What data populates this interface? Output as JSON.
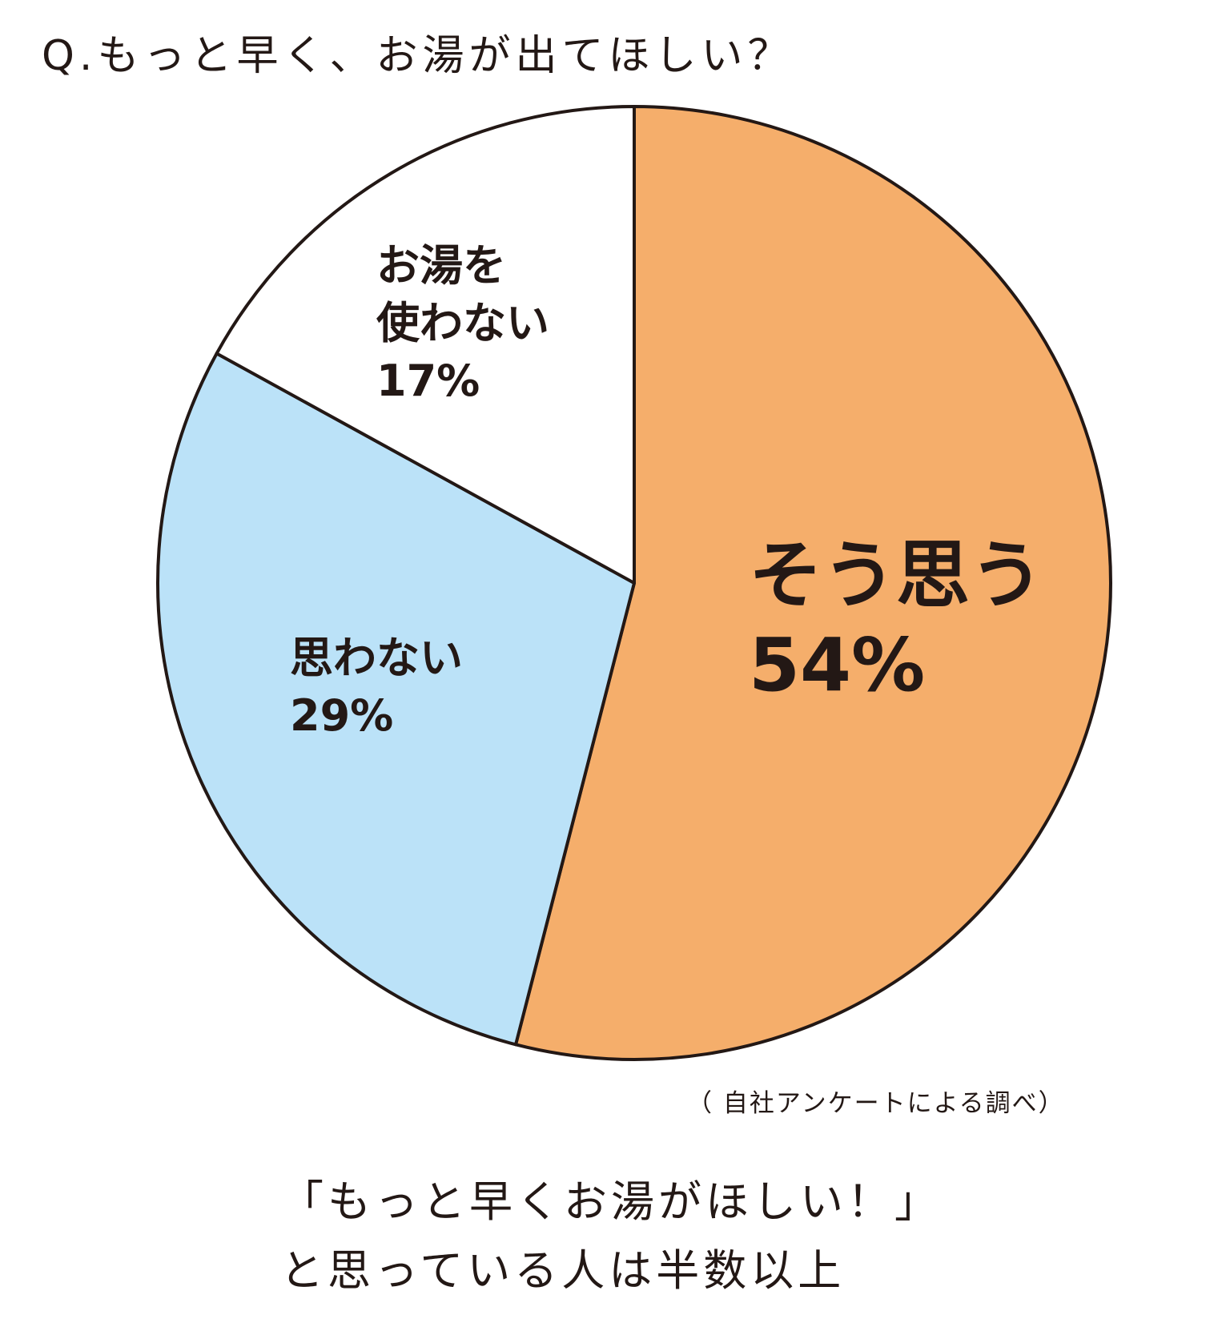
{
  "chart_data": {
    "type": "pie",
    "title": "Q.もっと早く、お湯が出てほしい？",
    "slices": [
      {
        "name": "そう思う",
        "value": 54,
        "percent_label": "54%",
        "color": "#F5AE6B"
      },
      {
        "name": "思わない",
        "value": 29,
        "percent_label": "29%",
        "color": "#BBE2F8"
      },
      {
        "name": "お湯を使わない",
        "label_lines": [
          "お湯を",
          "使わない"
        ],
        "value": 17,
        "percent_label": "17%",
        "color": "#FFFFFF"
      }
    ],
    "start": "12 o'clock, clockwise",
    "outline_color": "#231815",
    "source": "（ 自社アンケートによる調べ）",
    "caption": [
      "「もっと早くお湯がほしい！」",
      "と思っている人は半数以上"
    ]
  }
}
